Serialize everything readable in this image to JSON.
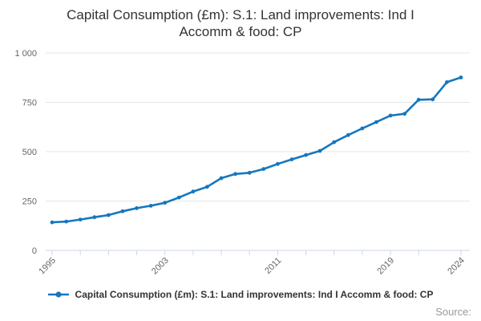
{
  "page": {
    "title": "Capital Consumption (£m): S.1: Land improvements: Ind I Accomm & food: CP",
    "source_label": "Source:"
  },
  "legend": {
    "label": "Capital Consumption (£m): S.1: Land improvements: Ind I Accomm & food: CP",
    "marker_color": "#1577be"
  },
  "chart_data": {
    "type": "line",
    "title": "Capital Consumption (£m): S.1: Land improvements: Ind I Accomm & food: CP",
    "xlabel": "",
    "ylabel": "",
    "x": [
      1995,
      1996,
      1997,
      1998,
      1999,
      2000,
      2001,
      2002,
      2003,
      2004,
      2005,
      2006,
      2007,
      2008,
      2009,
      2010,
      2011,
      2012,
      2013,
      2014,
      2015,
      2016,
      2017,
      2018,
      2019,
      2020,
      2021,
      2022,
      2023,
      2024
    ],
    "series": [
      {
        "name": "Capital Consumption (£m): S.1: Land improvements: Ind I Accomm & food: CP",
        "values": [
          142,
          146,
          156,
          168,
          179,
          198,
          214,
          226,
          241,
          268,
          298,
          322,
          366,
          387,
          393,
          412,
          438,
          461,
          483,
          504,
          548,
          584,
          618,
          650,
          683,
          692,
          763,
          765,
          852,
          876
        ]
      }
    ],
    "ylim": [
      0,
      1000
    ],
    "yticks": [
      {
        "value": 0,
        "label": "0"
      },
      {
        "value": 250,
        "label": "250"
      },
      {
        "value": 500,
        "label": "500"
      },
      {
        "value": 750,
        "label": "750"
      },
      {
        "value": 1000,
        "label": "1 000"
      }
    ],
    "xtick_marks": [
      1995,
      1997,
      1999,
      2001,
      2003,
      2005,
      2007,
      2009,
      2011,
      2013,
      2015,
      2017,
      2019,
      2021,
      2024
    ],
    "xtick_labels": [
      1995,
      2003,
      2011,
      2019,
      2024
    ],
    "grid": true,
    "legend_position": "bottom",
    "colors": {
      "line": "#1577be",
      "grid": "#e6e6e6",
      "axis": "#ccd6eb",
      "tick_label": "#666666",
      "title": "#333333",
      "source": "#999999"
    }
  }
}
